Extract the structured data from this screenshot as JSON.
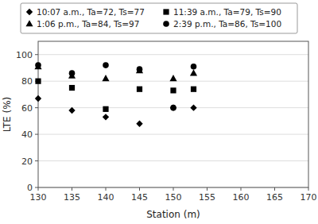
{
  "chart_data": {
    "type": "scatter",
    "xlabel": "Station (m)",
    "ylabel": "LTE (%)",
    "x": [
      130,
      135,
      140,
      145,
      150,
      153
    ],
    "series": [
      {
        "name": "10:07 a.m., Ta=72, Ts=77",
        "marker": "diamond",
        "values": [
          67,
          58,
          53,
          48,
          60,
          60
        ]
      },
      {
        "name": "11:39 a.m., Ta=79, Ts=90",
        "marker": "square",
        "values": [
          80,
          75,
          59,
          74,
          73,
          74
        ]
      },
      {
        "name": "1:06 p.m., Ta=84, Ts=97",
        "marker": "triangle",
        "values": [
          91,
          84,
          82,
          88,
          82,
          86
        ]
      },
      {
        "name": "2:39 p.m., Ta=86, Ts=100",
        "marker": "circle",
        "values": [
          92,
          86,
          92,
          89,
          60,
          91
        ]
      }
    ],
    "color": "black",
    "xlim": [
      130,
      170
    ],
    "ylim": [
      0,
      110
    ],
    "xticks": [
      130,
      135,
      140,
      145,
      150,
      155,
      160,
      165,
      170
    ],
    "yticks": [
      0,
      20,
      40,
      60,
      80,
      100
    ],
    "grid": true,
    "legend": "top"
  }
}
